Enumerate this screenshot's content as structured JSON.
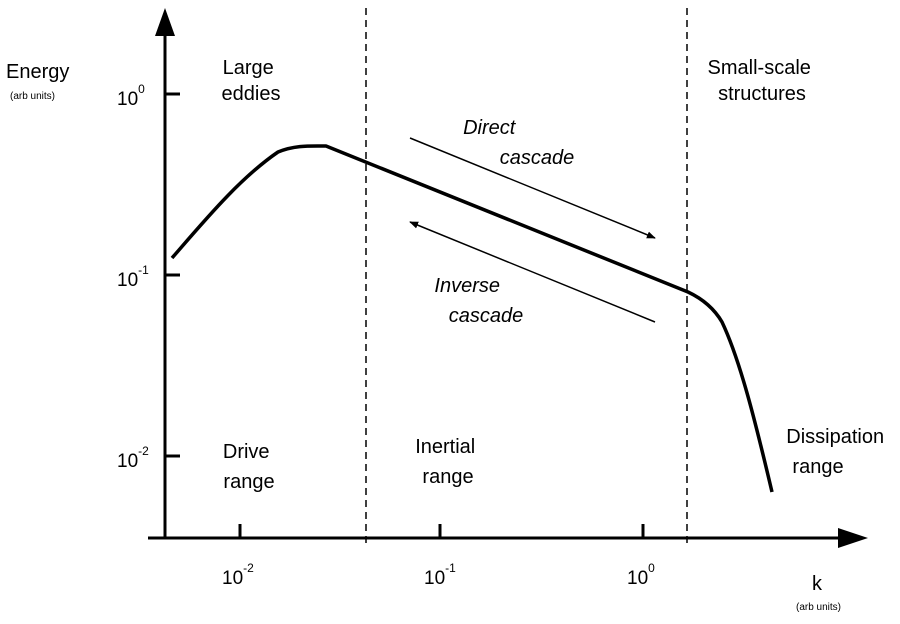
{
  "y_axis": {
    "label": "Energy",
    "units": "(arb units)"
  },
  "x_axis": {
    "label": "k",
    "units": "(arb units)"
  },
  "y_ticks": [
    {
      "base": "10",
      "exp": "0"
    },
    {
      "base": "10",
      "exp": "-1"
    },
    {
      "base": "10",
      "exp": "-2"
    }
  ],
  "x_ticks": [
    {
      "base": "10",
      "exp": "-2"
    },
    {
      "base": "10",
      "exp": "-1"
    },
    {
      "base": "10",
      "exp": "0"
    }
  ],
  "regions": {
    "large_eddies": [
      "Large",
      "eddies"
    ],
    "small_scale": [
      "Small-scale",
      "structures"
    ],
    "drive": [
      "Drive",
      "range"
    ],
    "inertial": [
      "Inertial",
      "range"
    ],
    "dissipation": [
      "Dissipation",
      "range"
    ]
  },
  "cascades": {
    "direct": [
      "Direct",
      "cascade"
    ],
    "inverse": [
      "Inverse",
      "cascade"
    ]
  },
  "colors": {
    "ink": "#000000",
    "background": "#ffffff"
  }
}
